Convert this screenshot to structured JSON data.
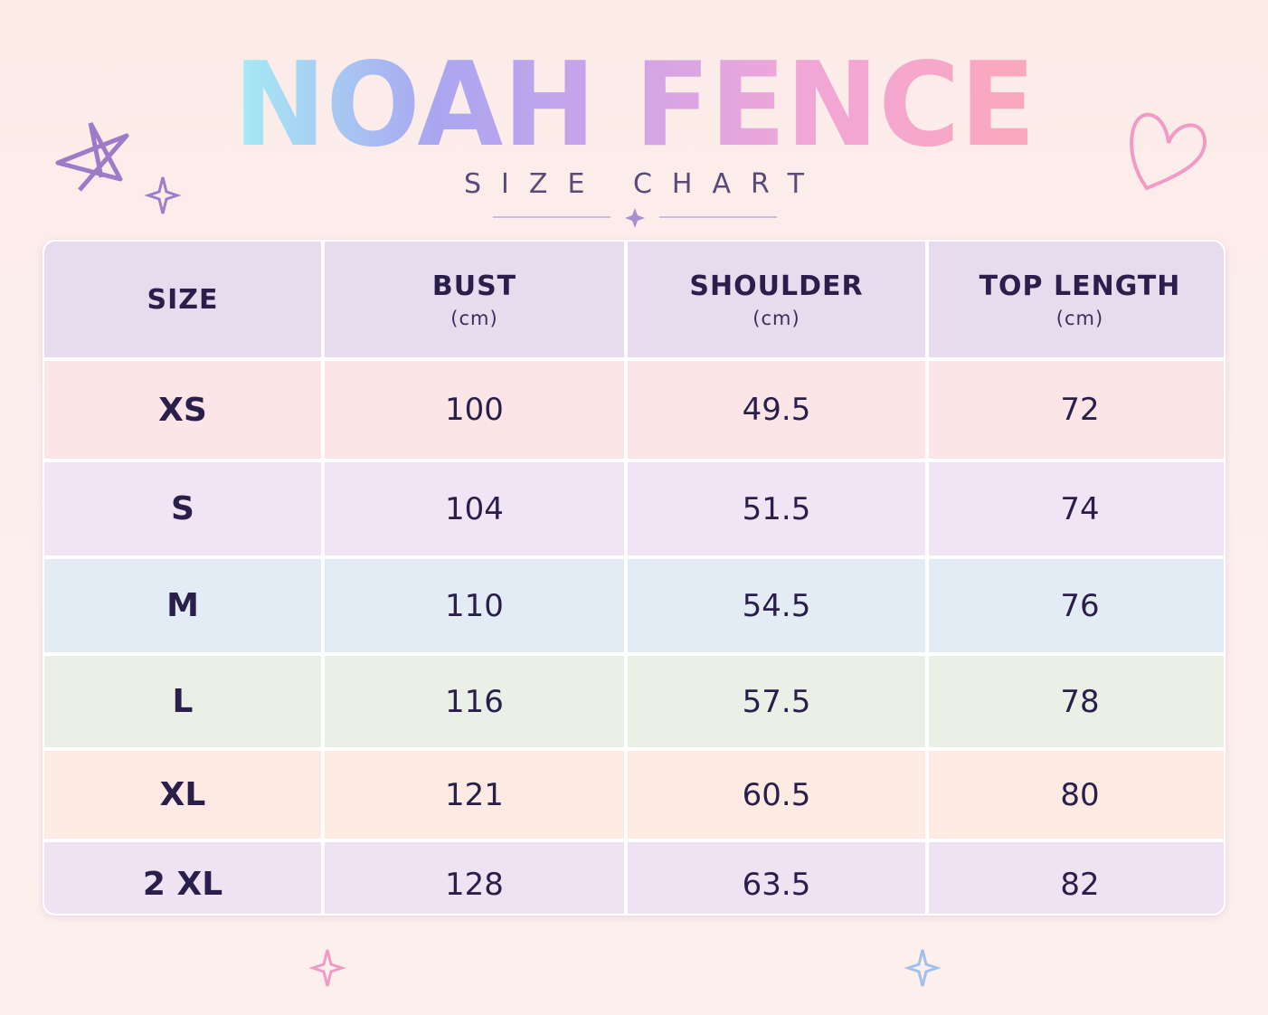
{
  "header": {
    "title": "NOAH FENCE",
    "subtitle": "SIZE CHART"
  },
  "table": {
    "columns": [
      {
        "label": "SIZE"
      },
      {
        "label": "BUST",
        "unit": "(cm)"
      },
      {
        "label": "SHOULDER",
        "unit": "(cm)"
      },
      {
        "label": "TOP LENGTH",
        "unit": "(cm)"
      }
    ],
    "rows": [
      [
        "XS",
        100,
        49.5,
        72
      ],
      [
        "S",
        104,
        51.5,
        74
      ],
      [
        "M",
        110,
        54.5,
        76
      ],
      [
        "L",
        116,
        57.5,
        78
      ],
      [
        "XL",
        121,
        60.5,
        80
      ],
      [
        "2 XL",
        128,
        63.5,
        82
      ]
    ]
  }
}
